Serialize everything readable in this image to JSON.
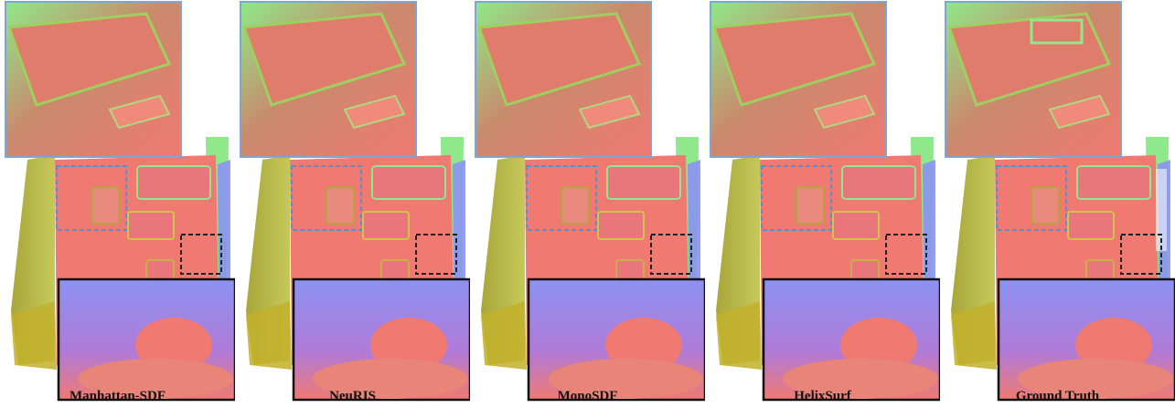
{
  "figure": {
    "panels": [
      {
        "method": "Manhattan-SDF"
      },
      {
        "method": "NeuRIS"
      },
      {
        "method": "MonoSDF"
      },
      {
        "method": "HelixSurf"
      },
      {
        "method": "Ground Truth"
      }
    ],
    "colors": {
      "floor": "#f07a72",
      "wall_green": "#8fe88a",
      "wall_olive": "#a9a63a",
      "wall_blue": "#8c92f2",
      "furniture_pink": "#e8767a",
      "zoom_top_border": "#7aa6d8",
      "zoom_bottom_border": "#111111",
      "dash_blue": "#5b8fc9",
      "dash_black": "#222222"
    }
  }
}
